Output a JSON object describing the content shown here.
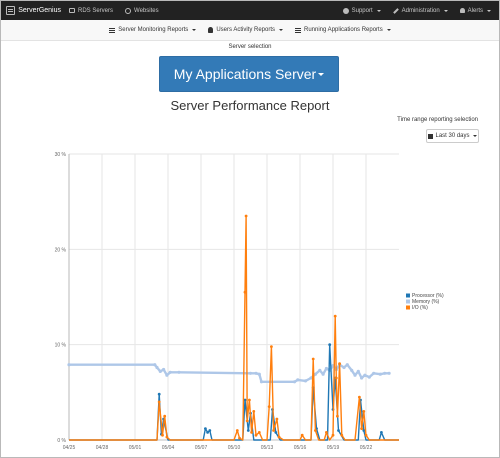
{
  "navbar": {
    "brand": "ServerGenius",
    "items": [
      "RDS Servers",
      "Websites"
    ],
    "right": [
      "Support",
      "Administration",
      "Alerts"
    ]
  },
  "subnav": {
    "items": [
      "Server Monitoring Reports",
      "Users Activity Reports",
      "Running Applications Reports"
    ]
  },
  "server_selection": {
    "label": "Server selection",
    "selected": "My Applications Server"
  },
  "report_title": "Server Performance Report",
  "time_range": {
    "label": "Time range reporting selection",
    "selected": "Last 30 days"
  },
  "colors": {
    "processor": "#1f77b4",
    "memory": "#aec7e8",
    "io": "#ff7f0e"
  },
  "chart_data": {
    "type": "line",
    "x_ticks": [
      "04/25",
      "04/28",
      "05/01",
      "05/04",
      "05/07",
      "05/10",
      "05/13",
      "05/16",
      "05/19",
      "05/22"
    ],
    "y_ticks": [
      "0 %",
      "10 %",
      "20 %",
      "30 %"
    ],
    "ylim": [
      0,
      30
    ],
    "legend_position": "right",
    "series": [
      {
        "name": "Processor (%)",
        "color": "#1f77b4",
        "points": [
          [
            0,
            0
          ],
          [
            8.0,
            0
          ],
          [
            8.2,
            4.8
          ],
          [
            8.4,
            0.6
          ],
          [
            8.6,
            2.2
          ],
          [
            9.0,
            0
          ],
          [
            12.2,
            0
          ],
          [
            12.4,
            1.2
          ],
          [
            12.6,
            0.8
          ],
          [
            12.8,
            1.0
          ],
          [
            13.0,
            0
          ],
          [
            15.8,
            0
          ],
          [
            16.0,
            4.2
          ],
          [
            16.3,
            1.0
          ],
          [
            16.5,
            2.8
          ],
          [
            16.8,
            0
          ],
          [
            18.3,
            0
          ],
          [
            18.5,
            3.2
          ],
          [
            18.8,
            0.8
          ],
          [
            19.2,
            0
          ],
          [
            22.0,
            0
          ],
          [
            22.2,
            5.5
          ],
          [
            22.5,
            1.2
          ],
          [
            22.8,
            0
          ],
          [
            23.5,
            0
          ],
          [
            23.7,
            10.0
          ],
          [
            24.0,
            3.2
          ],
          [
            24.2,
            6.5
          ],
          [
            24.5,
            1.0
          ],
          [
            25.0,
            0
          ],
          [
            26.3,
            0
          ],
          [
            26.5,
            4.2
          ],
          [
            26.8,
            1.0
          ],
          [
            27.0,
            0
          ],
          [
            28.2,
            0
          ],
          [
            28.4,
            0.8
          ],
          [
            28.7,
            0
          ],
          [
            30,
            0
          ]
        ]
      },
      {
        "name": "Memory (%)",
        "color": "#aec7e8",
        "points": [
          [
            0,
            7.9
          ],
          [
            7.8,
            7.9
          ],
          [
            8.0,
            7.6
          ],
          [
            8.3,
            7.2
          ],
          [
            8.6,
            7.4
          ],
          [
            8.9,
            6.8
          ],
          [
            9.2,
            7.1
          ],
          [
            10.0,
            7.1
          ],
          [
            16.5,
            7.0
          ],
          [
            17.0,
            7.0
          ],
          [
            17.3,
            6.9
          ],
          [
            17.5,
            6.1
          ],
          [
            20.5,
            6.1
          ],
          [
            20.8,
            6.3
          ],
          [
            21.5,
            6.2
          ],
          [
            22.0,
            6.5
          ],
          [
            22.4,
            6.9
          ],
          [
            22.8,
            7.3
          ],
          [
            23.1,
            6.9
          ],
          [
            23.4,
            7.5
          ],
          [
            23.7,
            7.3
          ],
          [
            24.0,
            7.8
          ],
          [
            24.3,
            7.4
          ],
          [
            24.6,
            7.9
          ],
          [
            25.0,
            7.6
          ],
          [
            25.3,
            7.9
          ],
          [
            25.7,
            7.3
          ],
          [
            26.0,
            6.8
          ],
          [
            26.3,
            7.2
          ],
          [
            26.6,
            6.5
          ],
          [
            26.9,
            6.8
          ],
          [
            27.3,
            6.6
          ],
          [
            27.7,
            7.0
          ],
          [
            28.3,
            6.9
          ],
          [
            28.7,
            7.0
          ],
          [
            29.1,
            7.0
          ]
        ]
      },
      {
        "name": "I/O (%)",
        "color": "#ff7f0e",
        "points": [
          [
            0,
            0
          ],
          [
            8.0,
            0
          ],
          [
            8.2,
            4.0
          ],
          [
            8.5,
            0.5
          ],
          [
            8.7,
            2.5
          ],
          [
            8.9,
            0.3
          ],
          [
            9.2,
            0
          ],
          [
            15.0,
            0
          ],
          [
            15.3,
            1.0
          ],
          [
            15.5,
            0.2
          ],
          [
            15.8,
            0
          ],
          [
            16.0,
            15.5
          ],
          [
            16.1,
            23.5
          ],
          [
            16.2,
            2.0
          ],
          [
            16.4,
            4.2
          ],
          [
            16.6,
            0.8
          ],
          [
            16.8,
            3.0
          ],
          [
            17.0,
            0.5
          ],
          [
            17.3,
            0.8
          ],
          [
            17.6,
            0
          ],
          [
            18.0,
            0
          ],
          [
            18.2,
            3.5
          ],
          [
            18.4,
            9.8
          ],
          [
            18.6,
            1.0
          ],
          [
            18.9,
            2.2
          ],
          [
            19.1,
            0.3
          ],
          [
            19.5,
            0
          ],
          [
            21.0,
            0
          ],
          [
            21.2,
            0.5
          ],
          [
            21.5,
            0
          ],
          [
            22.0,
            0
          ],
          [
            22.2,
            8.5
          ],
          [
            22.4,
            1.0
          ],
          [
            22.7,
            0
          ],
          [
            23.2,
            0
          ],
          [
            23.4,
            0.8
          ],
          [
            23.7,
            0
          ],
          [
            24.0,
            0.5
          ],
          [
            24.2,
            13.0
          ],
          [
            24.3,
            6.5
          ],
          [
            24.4,
            2.5
          ],
          [
            24.6,
            8.0
          ],
          [
            24.8,
            0.5
          ],
          [
            25.1,
            0
          ],
          [
            26.0,
            0
          ],
          [
            26.4,
            4.5
          ],
          [
            26.6,
            1.2
          ],
          [
            26.8,
            3.0
          ],
          [
            27.0,
            0.5
          ],
          [
            27.3,
            0
          ],
          [
            30,
            0
          ]
        ]
      }
    ]
  }
}
